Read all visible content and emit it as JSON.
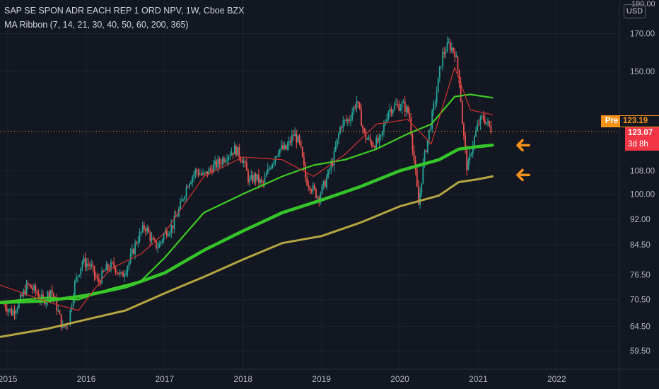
{
  "header": {
    "symbol_line": "SAP SE SPON ADR EACH REP 1 ORD NPV, 1W, Cboe BZX",
    "indicator_line": "MA Ribbon (7, 14, 21, 30, 40, 50, 60, 200, 365)",
    "currency": "USD",
    "top_axis_label": "190.00"
  },
  "price_tags": {
    "pre_label": "Pre",
    "pre_value": "123.19",
    "last_value": "123.07",
    "countdown": "3d 8h"
  },
  "colors": {
    "background": "#131722",
    "grid": "#1e222d",
    "up": "#26a69a",
    "down": "#ef5350",
    "ma_fast": "#3ecb26",
    "ma_200": "#35c52b",
    "ma_365": "#b5a642",
    "ma_red": "#d1332f",
    "arrow": "#f7931a",
    "dotted_line": "#f7931a"
  },
  "annotations": [
    {
      "type": "arrow-left-icon",
      "points_to_x": "2021-04",
      "y": 117.5
    },
    {
      "type": "arrow-left-icon",
      "points_to_x": "2021-04",
      "y": 106.5
    }
  ],
  "chart_data": {
    "type": "candlestick",
    "title": "SAP SE SPON ADR EACH REP 1 ORD NPV, 1W, Cboe BZX",
    "x_ticks": [
      "2015",
      "2016",
      "2017",
      "2018",
      "2019",
      "2020",
      "2021",
      "2022"
    ],
    "y_ticks": [
      59.5,
      64.5,
      70.5,
      76.5,
      84.5,
      92.0,
      100.0,
      108.0,
      123.07,
      150.0,
      170.0
    ],
    "y_scale": "log",
    "ylim": [
      56,
      190
    ],
    "xlim": [
      2014.9,
      2022.8
    ],
    "current_price": 123.07,
    "pre_price": 123.19,
    "price_path": [
      [
        2014.95,
        69.5
      ],
      [
        2015.05,
        67.5
      ],
      [
        2015.15,
        70.0
      ],
      [
        2015.25,
        74.0
      ],
      [
        2015.35,
        72.5
      ],
      [
        2015.45,
        70.0
      ],
      [
        2015.55,
        73.0
      ],
      [
        2015.62,
        69.0
      ],
      [
        2015.7,
        64.0
      ],
      [
        2015.78,
        66.0
      ],
      [
        2015.85,
        74.0
      ],
      [
        2015.95,
        80.0
      ],
      [
        2016.05,
        79.0
      ],
      [
        2016.15,
        74.5
      ],
      [
        2016.25,
        78.0
      ],
      [
        2016.35,
        79.0
      ],
      [
        2016.45,
        76.0
      ],
      [
        2016.55,
        80.0
      ],
      [
        2016.65,
        86.0
      ],
      [
        2016.75,
        90.0
      ],
      [
        2016.85,
        85.0
      ],
      [
        2016.92,
        84.0
      ],
      [
        2017.0,
        88.0
      ],
      [
        2017.1,
        90.0
      ],
      [
        2017.2,
        96.0
      ],
      [
        2017.3,
        104.0
      ],
      [
        2017.4,
        108.0
      ],
      [
        2017.5,
        106.0
      ],
      [
        2017.6,
        109.0
      ],
      [
        2017.7,
        111.0
      ],
      [
        2017.8,
        114.0
      ],
      [
        2017.9,
        116.0
      ],
      [
        2018.0,
        112.0
      ],
      [
        2018.08,
        104.0
      ],
      [
        2018.15,
        106.0
      ],
      [
        2018.25,
        103.0
      ],
      [
        2018.35,
        110.0
      ],
      [
        2018.45,
        116.0
      ],
      [
        2018.55,
        116.0
      ],
      [
        2018.65,
        122.0
      ],
      [
        2018.72,
        118.0
      ],
      [
        2018.8,
        105.0
      ],
      [
        2018.88,
        102.0
      ],
      [
        2018.96,
        99.0
      ],
      [
        2019.05,
        104.0
      ],
      [
        2019.15,
        112.0
      ],
      [
        2019.25,
        126.0
      ],
      [
        2019.35,
        128.0
      ],
      [
        2019.45,
        136.0
      ],
      [
        2019.55,
        121.0
      ],
      [
        2019.65,
        118.0
      ],
      [
        2019.75,
        119.0
      ],
      [
        2019.85,
        132.0
      ],
      [
        2019.95,
        134.0
      ],
      [
        2020.05,
        134.0
      ],
      [
        2020.12,
        130.0
      ],
      [
        2020.18,
        112.0
      ],
      [
        2020.24,
        96.0
      ],
      [
        2020.3,
        111.0
      ],
      [
        2020.38,
        124.0
      ],
      [
        2020.46,
        138.0
      ],
      [
        2020.54,
        158.0
      ],
      [
        2020.62,
        164.0
      ],
      [
        2020.7,
        160.0
      ],
      [
        2020.76,
        146.0
      ],
      [
        2020.8,
        125.0
      ],
      [
        2020.86,
        108.0
      ],
      [
        2020.92,
        117.0
      ],
      [
        2021.0,
        126.0
      ],
      [
        2021.06,
        129.0
      ],
      [
        2021.12,
        126.0
      ],
      [
        2021.18,
        123.07
      ]
    ],
    "series": [
      {
        "name": "MA 365",
        "x": [
          2014.9,
          2015.5,
          2016.0,
          2016.5,
          2017.0,
          2017.5,
          2018.0,
          2018.5,
          2019.0,
          2019.5,
          2020.0,
          2020.5,
          2020.75,
          2021.0,
          2021.18
        ],
        "values": [
          62.3,
          64.0,
          66.0,
          68.0,
          72.0,
          76.0,
          80.5,
          85.0,
          87.0,
          91.0,
          96.0,
          99.5,
          104.0,
          105.0,
          106.0
        ]
      },
      {
        "name": "MA 200",
        "x": [
          2014.9,
          2015.5,
          2016.0,
          2016.5,
          2017.0,
          2017.5,
          2018.0,
          2018.5,
          2019.0,
          2019.5,
          2020.0,
          2020.5,
          2020.75,
          2021.0,
          2021.18
        ],
        "values": [
          69.8,
          70.2,
          71.5,
          73.5,
          77.0,
          83.0,
          88.5,
          94.0,
          98.0,
          102.5,
          108.0,
          112.0,
          116.0,
          117.0,
          117.5
        ]
      },
      {
        "name": "MA 50",
        "x": [
          2014.9,
          2015.5,
          2015.9,
          2016.3,
          2016.7,
          2017.0,
          2017.5,
          2018.0,
          2018.5,
          2018.9,
          2019.3,
          2019.7,
          2020.1,
          2020.4,
          2020.7,
          2020.9,
          2021.18
        ],
        "values": [
          70.0,
          71.0,
          70.5,
          73.0,
          75.0,
          81.0,
          94.0,
          100.0,
          106.0,
          110.0,
          112.0,
          116.0,
          122.0,
          126.0,
          138.0,
          139.0,
          137.5
        ]
      },
      {
        "name": "MA 7",
        "x": [
          2014.9,
          2015.5,
          2015.9,
          2016.3,
          2016.7,
          2017.0,
          2017.5,
          2018.0,
          2018.5,
          2018.9,
          2019.3,
          2019.7,
          2020.1,
          2020.4,
          2020.7,
          2020.9,
          2021.18
        ],
        "values": [
          74.0,
          70.0,
          68.0,
          78.0,
          82.0,
          88.0,
          106.0,
          113.0,
          112.0,
          106.0,
          114.0,
          126.0,
          128.0,
          118.0,
          152.0,
          132.0,
          130.0
        ]
      }
    ]
  }
}
